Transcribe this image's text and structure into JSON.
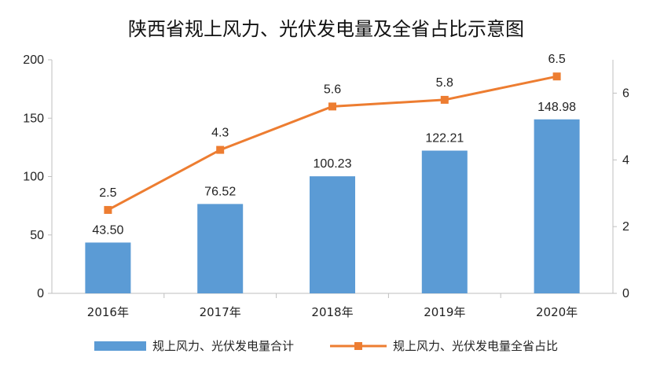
{
  "chart_data": {
    "type": "bar",
    "title": "陕西省规上风力、光伏发电量及全省占比示意图",
    "categories": [
      "2016年",
      "2017年",
      "2018年",
      "2019年",
      "2020年"
    ],
    "series": [
      {
        "name": "规上风力、光伏发电量合计",
        "type": "bar",
        "axis": "left",
        "values": [
          43.5,
          76.52,
          100.23,
          122.21,
          148.98
        ],
        "labels": [
          "43.50",
          "76.52",
          "100.23",
          "122.21",
          "148.98"
        ],
        "color": "#5B9BD5"
      },
      {
        "name": "规上风力、光伏发电量全省占比",
        "type": "line",
        "axis": "right",
        "values": [
          2.5,
          4.3,
          5.6,
          5.8,
          6.5
        ],
        "labels": [
          "2.5",
          "4.3",
          "5.6",
          "5.8",
          "6.5"
        ],
        "color": "#ED7D31"
      }
    ],
    "y_left": {
      "min": 0,
      "max": 200,
      "ticks": [
        "0",
        "50",
        "100",
        "150",
        "200"
      ]
    },
    "y_right": {
      "min": 0,
      "max": 7,
      "ticks": [
        "0",
        "2",
        "4",
        "6"
      ]
    },
    "legend_position": "bottom"
  }
}
